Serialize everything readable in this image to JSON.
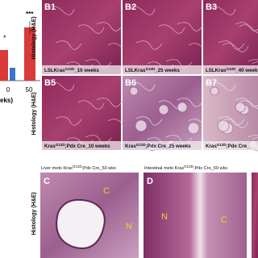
{
  "bar_fragment": {
    "significance": [
      "*",
      "***"
    ],
    "ticks": [
      "0",
      "50"
    ],
    "axis_label_fragment": "eks)"
  },
  "row_labels": [
    "Histology (H&E)",
    "Histology (H&E)",
    "Histology (H&E)"
  ],
  "panels": [
    {
      "label": "B1",
      "caption": {
        "pre": "LSLKras",
        "sup": "G12D",
        "post": "_10 weeks"
      }
    },
    {
      "label": "B2",
      "caption": {
        "pre": "LSLKras",
        "sup": "G12D",
        "post": "_25 weeks"
      }
    },
    {
      "label": "B3",
      "caption": {
        "pre": "LSLKras",
        "sup": "G12D",
        "post": "_40 weeks"
      }
    },
    {
      "label": "B5",
      "caption": {
        "pre": "Kras",
        "sup": "G12D",
        "post": ";Pdx Cre_10 weeks"
      }
    },
    {
      "label": "B6",
      "caption": {
        "pre": "Kras",
        "sup": "G12D",
        "post": ";Pdx Cre_25 weeks"
      }
    },
    {
      "label": "B7",
      "caption": {
        "pre": "Kras",
        "sup": "G12D",
        "post": ";Pdx Cre_"
      }
    }
  ],
  "lower_panels": [
    {
      "label": "C",
      "title": {
        "pre": "Liver mets Kras",
        "sup": "G12D",
        "post": ";Pdx Cre_50 wks"
      },
      "marks": [
        "C",
        "N"
      ]
    },
    {
      "label": "D",
      "title": {
        "pre": "Intestinal mets Kras",
        "sup": "G12D",
        "post": ";Pdx Cre_50 wks"
      },
      "marks": [
        "N",
        "C"
      ]
    }
  ]
}
